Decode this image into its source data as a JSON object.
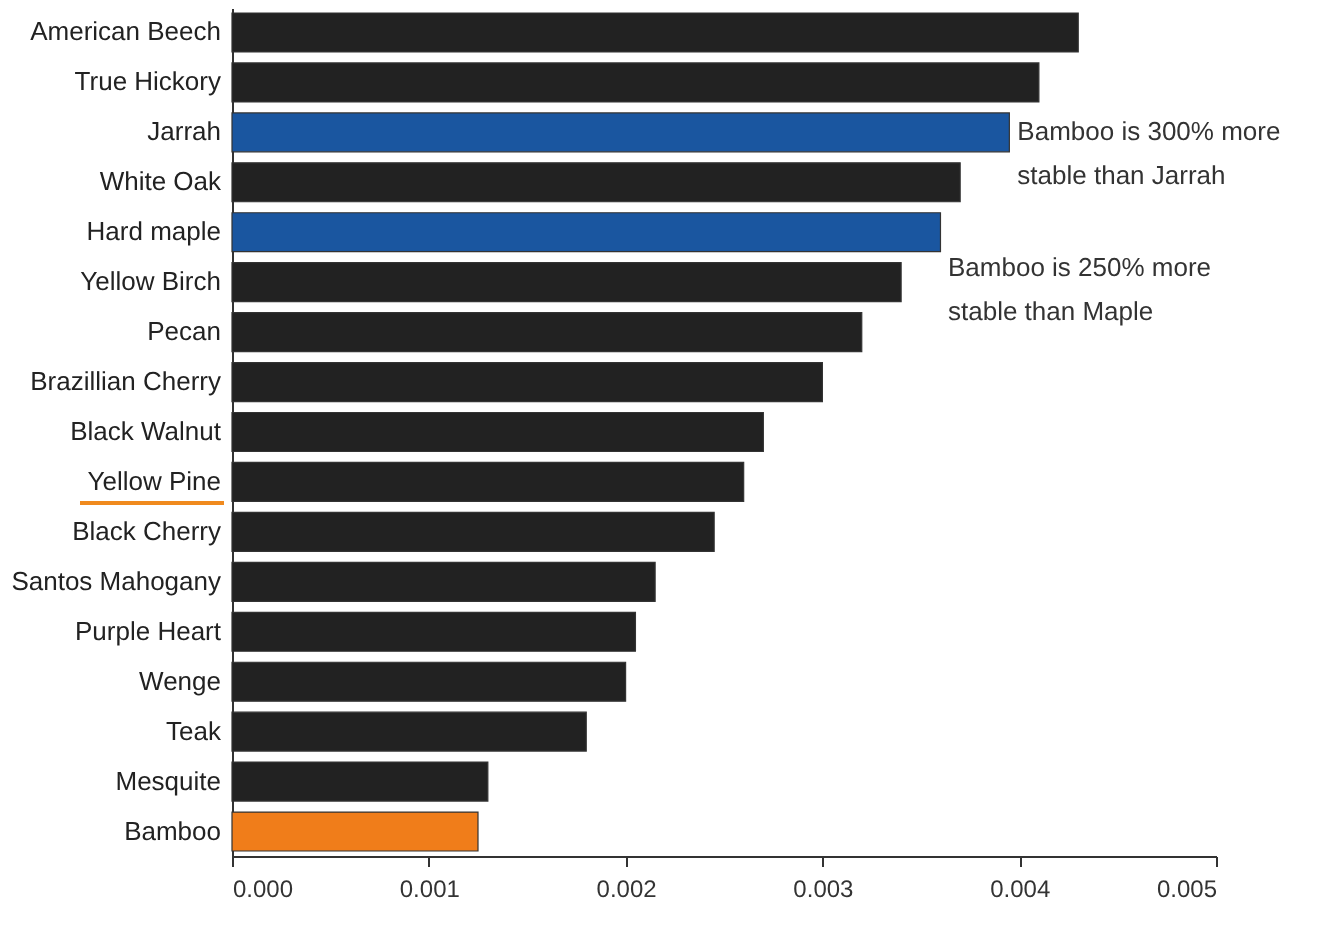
{
  "chart_data": {
    "type": "bar",
    "orientation": "horizontal",
    "categories": [
      "American Beech",
      "True Hickory",
      "Jarrah",
      "White Oak",
      "Hard maple",
      "Yellow Birch",
      "Pecan",
      "Brazillian Cherry",
      "Black Walnut",
      "Yellow Pine",
      "Black Cherry",
      "Santos Mahogany",
      "Purple Heart",
      "Wenge",
      "Teak",
      "Mesquite",
      "Bamboo"
    ],
    "values": [
      0.0043,
      0.0041,
      0.00395,
      0.0037,
      0.0036,
      0.0034,
      0.0032,
      0.003,
      0.0027,
      0.0026,
      0.00245,
      0.00215,
      0.00205,
      0.002,
      0.0018,
      0.0013,
      0.00125
    ],
    "colors": [
      "#222222",
      "#222222",
      "#1a56a0",
      "#222222",
      "#1a56a0",
      "#222222",
      "#222222",
      "#222222",
      "#222222",
      "#222222",
      "#222222",
      "#222222",
      "#222222",
      "#222222",
      "#222222",
      "#222222",
      "#f07d1a"
    ],
    "xlim": [
      0,
      0.005
    ],
    "xticks": [
      {
        "value": 0,
        "label": "0.000"
      },
      {
        "value": 0.001,
        "label": "0.001"
      },
      {
        "value": 0.002,
        "label": "0.002"
      },
      {
        "value": 0.003,
        "label": "0.003"
      },
      {
        "value": 0.004,
        "label": "0.004"
      },
      {
        "value": 0.005,
        "label": "0.005"
      }
    ],
    "grid": false,
    "annotations": [
      {
        "text": "Bamboo is 300% more\nstable than Jarrah",
        "x": 0.00395,
        "y": "Jarrah"
      },
      "Bamboo is 250% more\nstable than Maple"
    ]
  }
}
